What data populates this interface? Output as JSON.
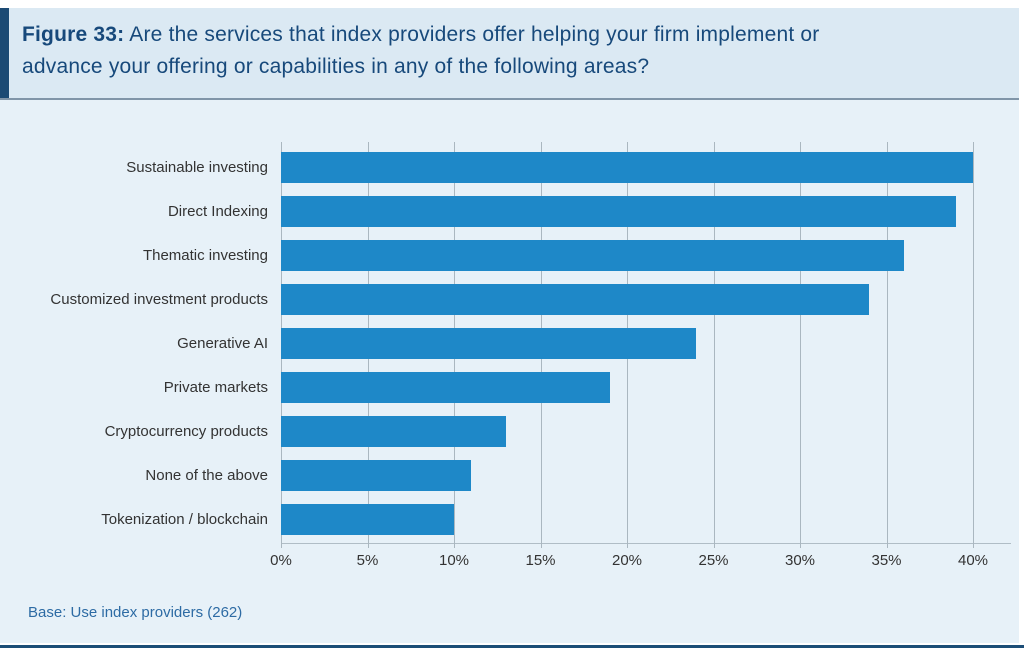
{
  "header": {
    "figure_label": "Figure 33:",
    "title": "Are the services that index providers offer helping your firm implement or advance your offering or capabilities in any of the following areas?",
    "title_line1": "Are the services that index providers offer helping your firm implement or",
    "title_line2": "advance your offering or capabilities in any of the following areas?"
  },
  "chart_data": {
    "type": "bar",
    "orientation": "horizontal",
    "title": "Are the services that index providers offer helping your firm implement or advance your offering or capabilities in any of the following areas?",
    "categories": [
      "Sustainable investing",
      "Direct Indexing",
      "Thematic investing",
      "Customized investment products",
      "Generative AI",
      "Private markets",
      "Cryptocurrency products",
      "None of the above",
      "Tokenization / blockchain"
    ],
    "values": [
      40,
      39,
      36,
      34,
      24,
      19,
      13,
      11,
      10
    ],
    "unit": "%",
    "xlabel": "",
    "ylabel": "",
    "xlim": [
      0,
      40
    ],
    "x_tick_values": [
      0,
      5,
      10,
      15,
      20,
      25,
      30,
      35,
      40
    ],
    "x_tick_labels": [
      "0%",
      "5%",
      "10%",
      "15%",
      "20%",
      "25%",
      "30%",
      "35%",
      "40%"
    ],
    "grid": true,
    "legend": false,
    "bar_color": "#1e88c8"
  },
  "footer": {
    "base_note": "Base: Use index providers (262)"
  },
  "colors": {
    "accent_navy": "#1b4a74",
    "title_text": "#17497b",
    "header_background": "#dbe9f3",
    "chart_background": "#e7f1f8",
    "bar_blue": "#1e88c8",
    "gridline": "#aab7c0",
    "label_text": "#333333",
    "base_note_text": "#2d6ba4",
    "bottom_rule": "#1c4e77"
  }
}
